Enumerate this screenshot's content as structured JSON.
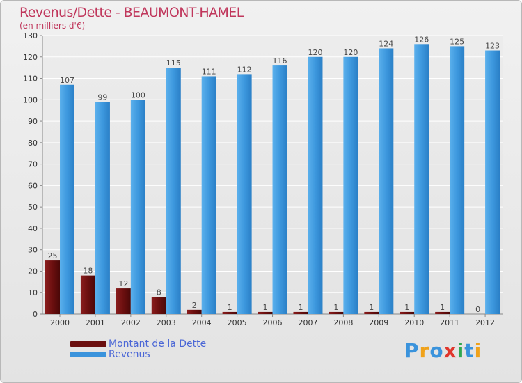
{
  "header": {
    "title": "Revenus/Dette - BEAUMONT-HAMEL",
    "subtitle": "(en milliers d'€)"
  },
  "colors": {
    "dette": "#6b0f0f",
    "revenus": "#3a93dc",
    "title": "#c0375c",
    "legend_text": "#4a66d6"
  },
  "chart_data": {
    "type": "bar",
    "title": "Revenus/Dette - BEAUMONT-HAMEL",
    "subtitle": "(en milliers d'€)",
    "xlabel": "",
    "ylabel": "",
    "ylim": [
      0,
      130
    ],
    "yticks": [
      0,
      10,
      20,
      30,
      40,
      50,
      60,
      70,
      80,
      90,
      100,
      110,
      120,
      130
    ],
    "grid": true,
    "legend_position": "bottom-left",
    "categories": [
      "2000",
      "2001",
      "2002",
      "2003",
      "2004",
      "2005",
      "2006",
      "2007",
      "2008",
      "2009",
      "2010",
      "2011",
      "2012"
    ],
    "series": [
      {
        "name": "Montant de la Dette",
        "values": [
          25,
          18,
          12,
          8,
          2,
          1,
          1,
          1,
          1,
          1,
          1,
          1,
          0
        ]
      },
      {
        "name": "Revenus",
        "values": [
          107,
          99,
          100,
          115,
          111,
          112,
          116,
          120,
          120,
          124,
          126,
          125,
          123
        ]
      }
    ]
  },
  "legend": {
    "items": [
      {
        "label": "Montant de la Dette",
        "color": "#6b0f0f"
      },
      {
        "label": "Revenus",
        "color": "#3a93dc"
      }
    ]
  },
  "logo": {
    "text": "Proxiti",
    "letter_colors": [
      "#3a93dc",
      "#f0a21a",
      "#3a93dc",
      "#e0352b",
      "#2fa84f",
      "#3a93dc",
      "#f0a21a"
    ]
  }
}
